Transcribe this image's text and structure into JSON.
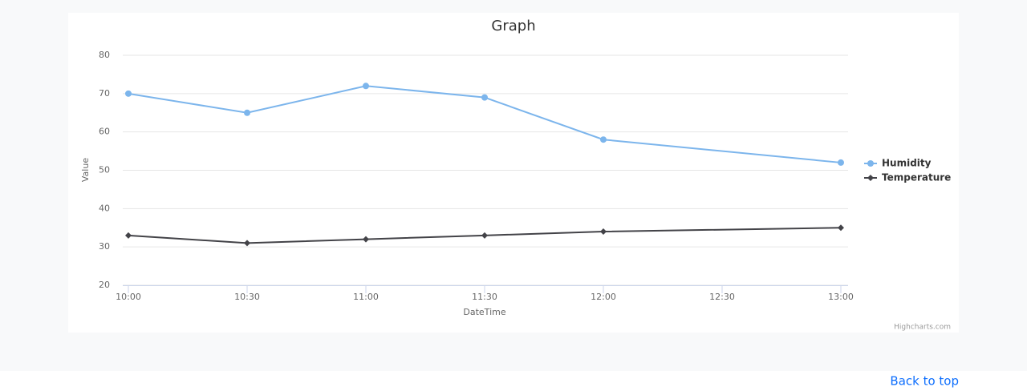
{
  "chart_data": {
    "type": "line",
    "title": "Graph",
    "x_label": "DateTime",
    "y_label": "Value",
    "x": [
      "10:00",
      "10:30",
      "11:00",
      "11:30",
      "12:00",
      "13:00"
    ],
    "series": [
      {
        "name": "Humidity",
        "color": "#7cb5ec",
        "marker": "circle",
        "values": [
          70,
          65,
          72,
          69,
          58,
          52
        ]
      },
      {
        "name": "Temperature",
        "color": "#434348",
        "marker": "diamond",
        "values": [
          33,
          31,
          32,
          33,
          34,
          35
        ]
      }
    ],
    "xlim": [
      "10:00",
      "13:00"
    ],
    "xticks": [
      "10:00",
      "10:30",
      "11:00",
      "11:30",
      "12:00",
      "12:30",
      "13:00"
    ],
    "ylim": [
      20,
      80
    ],
    "yticks": [
      20,
      30,
      40,
      50,
      60,
      70,
      80
    ],
    "grid": true,
    "legend": "right",
    "credits": "Highcharts.com"
  },
  "back_to_top": "Back to top"
}
